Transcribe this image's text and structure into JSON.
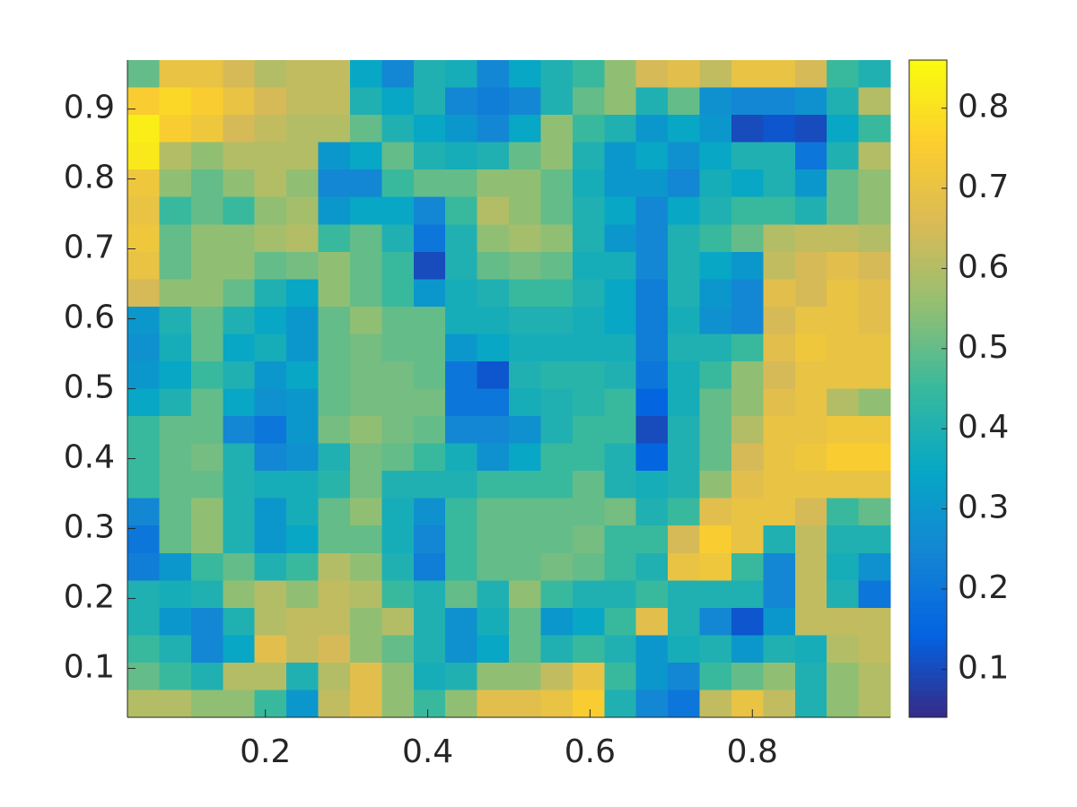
{
  "chart_data": {
    "type": "heatmap",
    "colormap": "parula",
    "xlim": [
      0.03,
      0.97
    ],
    "ylim": [
      0.03,
      0.97
    ],
    "xticks": [
      0.2,
      0.4,
      0.6,
      0.8
    ],
    "yticks": [
      0.1,
      0.2,
      0.3,
      0.4,
      0.5,
      0.6,
      0.7,
      0.8,
      0.9
    ],
    "clim": [
      0.04,
      0.86
    ],
    "cticks": [
      0.1,
      0.2,
      0.3,
      0.4,
      0.5,
      0.6,
      0.7,
      0.8
    ],
    "values": [
      [
        0.5,
        0.7,
        0.7,
        0.65,
        0.6,
        0.62,
        0.62,
        0.35,
        0.25,
        0.4,
        0.38,
        0.25,
        0.35,
        0.4,
        0.45,
        0.55,
        0.65,
        0.68,
        0.62,
        0.7,
        0.7,
        0.65,
        0.45,
        0.4
      ],
      [
        0.75,
        0.78,
        0.75,
        0.7,
        0.65,
        0.62,
        0.62,
        0.4,
        0.35,
        0.4,
        0.25,
        0.22,
        0.25,
        0.4,
        0.5,
        0.55,
        0.4,
        0.5,
        0.28,
        0.25,
        0.25,
        0.28,
        0.4,
        0.6
      ],
      [
        0.83,
        0.75,
        0.72,
        0.65,
        0.62,
        0.6,
        0.6,
        0.5,
        0.4,
        0.35,
        0.3,
        0.25,
        0.35,
        0.55,
        0.45,
        0.4,
        0.3,
        0.35,
        0.3,
        0.1,
        0.12,
        0.1,
        0.35,
        0.45
      ],
      [
        0.82,
        0.6,
        0.55,
        0.6,
        0.6,
        0.6,
        0.3,
        0.35,
        0.5,
        0.4,
        0.38,
        0.4,
        0.5,
        0.55,
        0.4,
        0.3,
        0.35,
        0.28,
        0.35,
        0.4,
        0.4,
        0.2,
        0.4,
        0.6
      ],
      [
        0.72,
        0.55,
        0.5,
        0.55,
        0.6,
        0.55,
        0.25,
        0.25,
        0.45,
        0.5,
        0.5,
        0.55,
        0.55,
        0.5,
        0.38,
        0.3,
        0.3,
        0.25,
        0.38,
        0.35,
        0.4,
        0.3,
        0.5,
        0.55
      ],
      [
        0.7,
        0.45,
        0.5,
        0.45,
        0.55,
        0.58,
        0.3,
        0.35,
        0.35,
        0.25,
        0.45,
        0.6,
        0.55,
        0.5,
        0.4,
        0.35,
        0.25,
        0.35,
        0.4,
        0.45,
        0.45,
        0.4,
        0.5,
        0.55
      ],
      [
        0.72,
        0.5,
        0.55,
        0.55,
        0.58,
        0.6,
        0.45,
        0.5,
        0.4,
        0.2,
        0.4,
        0.55,
        0.58,
        0.55,
        0.4,
        0.3,
        0.25,
        0.4,
        0.45,
        0.5,
        0.6,
        0.62,
        0.62,
        0.6
      ],
      [
        0.7,
        0.5,
        0.55,
        0.55,
        0.5,
        0.52,
        0.55,
        0.5,
        0.45,
        0.1,
        0.4,
        0.5,
        0.52,
        0.5,
        0.38,
        0.38,
        0.25,
        0.4,
        0.35,
        0.3,
        0.62,
        0.65,
        0.68,
        0.65
      ],
      [
        0.65,
        0.55,
        0.55,
        0.5,
        0.4,
        0.35,
        0.55,
        0.5,
        0.45,
        0.3,
        0.38,
        0.4,
        0.45,
        0.45,
        0.4,
        0.35,
        0.22,
        0.4,
        0.3,
        0.25,
        0.68,
        0.65,
        0.7,
        0.68
      ],
      [
        0.3,
        0.4,
        0.5,
        0.4,
        0.35,
        0.3,
        0.5,
        0.55,
        0.5,
        0.5,
        0.38,
        0.38,
        0.4,
        0.4,
        0.38,
        0.35,
        0.22,
        0.38,
        0.28,
        0.25,
        0.65,
        0.7,
        0.7,
        0.68
      ],
      [
        0.28,
        0.38,
        0.5,
        0.35,
        0.38,
        0.3,
        0.5,
        0.52,
        0.5,
        0.5,
        0.3,
        0.35,
        0.38,
        0.38,
        0.38,
        0.38,
        0.22,
        0.4,
        0.4,
        0.45,
        0.68,
        0.72,
        0.7,
        0.7
      ],
      [
        0.3,
        0.35,
        0.45,
        0.4,
        0.3,
        0.35,
        0.5,
        0.52,
        0.52,
        0.5,
        0.2,
        0.12,
        0.4,
        0.42,
        0.42,
        0.4,
        0.2,
        0.38,
        0.45,
        0.55,
        0.65,
        0.7,
        0.7,
        0.7
      ],
      [
        0.35,
        0.4,
        0.5,
        0.35,
        0.28,
        0.3,
        0.5,
        0.52,
        0.52,
        0.52,
        0.2,
        0.2,
        0.38,
        0.4,
        0.42,
        0.45,
        0.15,
        0.38,
        0.5,
        0.55,
        0.68,
        0.7,
        0.6,
        0.55
      ],
      [
        0.45,
        0.5,
        0.5,
        0.25,
        0.2,
        0.3,
        0.52,
        0.55,
        0.52,
        0.5,
        0.25,
        0.25,
        0.28,
        0.4,
        0.45,
        0.45,
        0.1,
        0.4,
        0.5,
        0.6,
        0.7,
        0.7,
        0.72,
        0.72
      ],
      [
        0.45,
        0.5,
        0.52,
        0.4,
        0.25,
        0.28,
        0.4,
        0.52,
        0.5,
        0.45,
        0.38,
        0.28,
        0.35,
        0.45,
        0.45,
        0.4,
        0.15,
        0.4,
        0.5,
        0.65,
        0.7,
        0.72,
        0.75,
        0.75
      ],
      [
        0.45,
        0.5,
        0.5,
        0.4,
        0.38,
        0.38,
        0.42,
        0.52,
        0.4,
        0.4,
        0.4,
        0.45,
        0.45,
        0.45,
        0.5,
        0.4,
        0.38,
        0.4,
        0.55,
        0.68,
        0.7,
        0.7,
        0.7,
        0.7
      ],
      [
        0.25,
        0.5,
        0.55,
        0.4,
        0.3,
        0.38,
        0.5,
        0.55,
        0.38,
        0.28,
        0.45,
        0.5,
        0.5,
        0.5,
        0.5,
        0.52,
        0.4,
        0.45,
        0.68,
        0.7,
        0.7,
        0.65,
        0.45,
        0.5
      ],
      [
        0.2,
        0.5,
        0.55,
        0.4,
        0.3,
        0.35,
        0.5,
        0.5,
        0.38,
        0.25,
        0.45,
        0.5,
        0.5,
        0.5,
        0.52,
        0.45,
        0.45,
        0.65,
        0.75,
        0.7,
        0.4,
        0.62,
        0.4,
        0.4
      ],
      [
        0.22,
        0.3,
        0.45,
        0.5,
        0.4,
        0.45,
        0.6,
        0.55,
        0.4,
        0.22,
        0.45,
        0.5,
        0.5,
        0.52,
        0.5,
        0.45,
        0.4,
        0.7,
        0.72,
        0.45,
        0.25,
        0.62,
        0.38,
        0.28
      ],
      [
        0.4,
        0.38,
        0.4,
        0.55,
        0.6,
        0.55,
        0.62,
        0.6,
        0.45,
        0.4,
        0.5,
        0.4,
        0.55,
        0.45,
        0.4,
        0.4,
        0.45,
        0.4,
        0.4,
        0.4,
        0.25,
        0.62,
        0.4,
        0.2
      ],
      [
        0.4,
        0.3,
        0.25,
        0.4,
        0.6,
        0.62,
        0.62,
        0.55,
        0.6,
        0.4,
        0.28,
        0.38,
        0.5,
        0.3,
        0.35,
        0.45,
        0.68,
        0.4,
        0.25,
        0.12,
        0.3,
        0.62,
        0.62,
        0.62
      ],
      [
        0.45,
        0.4,
        0.25,
        0.35,
        0.68,
        0.62,
        0.65,
        0.55,
        0.5,
        0.4,
        0.28,
        0.35,
        0.5,
        0.4,
        0.45,
        0.4,
        0.3,
        0.38,
        0.4,
        0.3,
        0.4,
        0.38,
        0.6,
        0.62
      ],
      [
        0.5,
        0.45,
        0.4,
        0.6,
        0.6,
        0.4,
        0.6,
        0.68,
        0.55,
        0.38,
        0.4,
        0.55,
        0.55,
        0.62,
        0.7,
        0.45,
        0.3,
        0.25,
        0.45,
        0.5,
        0.55,
        0.4,
        0.55,
        0.6
      ],
      [
        0.6,
        0.6,
        0.55,
        0.55,
        0.45,
        0.3,
        0.62,
        0.68,
        0.55,
        0.45,
        0.55,
        0.68,
        0.68,
        0.7,
        0.75,
        0.4,
        0.25,
        0.2,
        0.62,
        0.7,
        0.62,
        0.4,
        0.55,
        0.6
      ]
    ]
  }
}
